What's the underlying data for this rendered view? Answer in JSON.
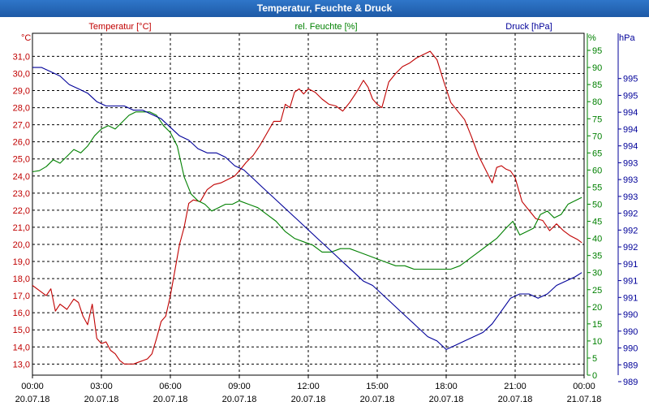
{
  "window": {
    "title": "Temperatur, Feuchte & Druck"
  },
  "colors": {
    "temperature": "#c00000",
    "humidity": "#008000",
    "pressure": "#000099",
    "grid": "#000000"
  },
  "chart_data": {
    "type": "line",
    "title": "Temperatur, Feuchte & Druck",
    "x_ticks": [
      {
        "time": "00:00",
        "date": "20.07.18"
      },
      {
        "time": "03:00",
        "date": "20.07.18"
      },
      {
        "time": "06:00",
        "date": "20.07.18"
      },
      {
        "time": "09:00",
        "date": "20.07.18"
      },
      {
        "time": "12:00",
        "date": "20.07.18"
      },
      {
        "time": "15:00",
        "date": "20.07.18"
      },
      {
        "time": "18:00",
        "date": "20.07.18"
      },
      {
        "time": "21:00",
        "date": "20.07.18"
      },
      {
        "time": "00:00",
        "date": "21.07.18"
      }
    ],
    "xlim_hours": [
      0,
      24
    ],
    "axes": {
      "temperature": {
        "label": "Temperatur [°C]",
        "unit": "°C",
        "ylim": [
          12.35,
          32.35
        ],
        "ticks": [
          "13,0",
          "14,0",
          "15,0",
          "16,0",
          "17,0",
          "18,0",
          "19,0",
          "20,0",
          "21,0",
          "22,0",
          "23,0",
          "24,0",
          "25,0",
          "26,0",
          "27,0",
          "28,0",
          "29,0",
          "30,0",
          "31,0"
        ]
      },
      "humidity": {
        "label": "rel. Feuchte [%]",
        "unit": "%",
        "ylim": [
          0,
          100
        ],
        "ticks": [
          "0",
          "5",
          "10",
          "15",
          "20",
          "25",
          "30",
          "35",
          "40",
          "45",
          "50",
          "55",
          "60",
          "65",
          "70",
          "75",
          "80",
          "85",
          "90",
          "95"
        ]
      },
      "pressure": {
        "label": "Druck [hPa]",
        "unit": "hPa",
        "ylim": [
          988.4,
          996.4
        ],
        "ticks": [
          "989",
          "989",
          "990",
          "990",
          "990",
          "991",
          "991",
          "991",
          "992",
          "992",
          "992",
          "993",
          "993",
          "993",
          "994",
          "994",
          "994",
          "995",
          "995"
        ]
      }
    },
    "series": [
      {
        "name": "Temperatur",
        "axis": "temperature",
        "x": [
          0,
          0.3,
          0.6,
          0.8,
          1.0,
          1.2,
          1.5,
          1.8,
          2.0,
          2.2,
          2.4,
          2.6,
          2.8,
          3.0,
          3.2,
          3.4,
          3.6,
          3.8,
          4.0,
          4.2,
          4.4,
          4.6,
          4.8,
          5.0,
          5.2,
          5.4,
          5.6,
          5.8,
          6.0,
          6.2,
          6.4,
          6.6,
          6.8,
          7.0,
          7.3,
          7.6,
          7.9,
          8.2,
          8.5,
          8.8,
          9.0,
          9.3,
          9.6,
          9.9,
          10.2,
          10.5,
          10.8,
          11.0,
          11.2,
          11.4,
          11.6,
          11.8,
          12.0,
          12.3,
          12.6,
          12.9,
          13.2,
          13.5,
          13.8,
          14.1,
          14.4,
          14.6,
          14.8,
          15.0,
          15.2,
          15.5,
          15.8,
          16.1,
          16.4,
          16.7,
          17.0,
          17.3,
          17.6,
          17.9,
          18.2,
          18.5,
          18.8,
          19.1,
          19.4,
          19.7,
          20.0,
          20.2,
          20.4,
          20.6,
          20.8,
          21.0,
          21.3,
          21.6,
          21.9,
          22.2,
          22.5,
          22.8,
          23.1,
          23.4,
          23.7,
          23.9
        ],
        "values": [
          17.6,
          17.3,
          17.0,
          17.4,
          16.1,
          16.5,
          16.2,
          16.8,
          16.6,
          15.8,
          15.3,
          16.5,
          14.5,
          14.2,
          14.3,
          13.8,
          13.6,
          13.2,
          13.0,
          13.0,
          13.0,
          13.1,
          13.2,
          13.3,
          13.6,
          14.5,
          15.5,
          15.8,
          17.0,
          18.5,
          20.0,
          21.0,
          22.4,
          22.6,
          22.5,
          23.2,
          23.5,
          23.6,
          23.8,
          24.0,
          24.3,
          24.8,
          25.2,
          25.8,
          26.5,
          27.2,
          27.2,
          28.2,
          28.0,
          28.9,
          29.1,
          28.8,
          29.1,
          28.9,
          28.5,
          28.2,
          28.1,
          27.8,
          28.3,
          28.9,
          29.6,
          29.2,
          28.5,
          28.2,
          28.0,
          29.5,
          30.0,
          30.4,
          30.6,
          30.9,
          31.1,
          31.3,
          30.8,
          29.5,
          28.3,
          27.8,
          27.3,
          26.3,
          25.2,
          24.4,
          23.6,
          24.5,
          24.6,
          24.4,
          24.3,
          23.9,
          22.5,
          22.0,
          21.5,
          21.4,
          20.8,
          21.2,
          20.8,
          20.5,
          20.3,
          20.1
        ]
      },
      {
        "name": "rel. Feuchte",
        "axis": "humidity",
        "x": [
          0,
          0.3,
          0.6,
          0.9,
          1.2,
          1.5,
          1.8,
          2.1,
          2.4,
          2.7,
          3.0,
          3.3,
          3.6,
          3.9,
          4.2,
          4.5,
          4.8,
          5.1,
          5.4,
          5.7,
          6.0,
          6.3,
          6.6,
          6.9,
          7.2,
          7.5,
          7.8,
          8.1,
          8.4,
          8.7,
          9.0,
          9.4,
          9.8,
          10.2,
          10.6,
          11.0,
          11.4,
          11.8,
          12.2,
          12.6,
          13.0,
          13.4,
          13.8,
          14.2,
          14.6,
          15.0,
          15.4,
          15.8,
          16.2,
          16.6,
          17.0,
          17.4,
          17.8,
          18.2,
          18.6,
          19.0,
          19.4,
          19.8,
          20.2,
          20.6,
          20.9,
          21.2,
          21.5,
          21.8,
          22.1,
          22.4,
          22.7,
          23.0,
          23.3,
          23.6,
          23.9
        ],
        "values": [
          59.5,
          59.8,
          61,
          63,
          62,
          64,
          66,
          65,
          67,
          70,
          72,
          73,
          72,
          74,
          76,
          77,
          77,
          77,
          76,
          73,
          71,
          67,
          58,
          53,
          51,
          50,
          48,
          49,
          50,
          50,
          51,
          50,
          49,
          47,
          45,
          42,
          40,
          39,
          38,
          36,
          36,
          37,
          37,
          36,
          35,
          34,
          33,
          32,
          32,
          31,
          31,
          31,
          31,
          31,
          32,
          34,
          36,
          38,
          40,
          43,
          45,
          41,
          42,
          43,
          47,
          48,
          46,
          47,
          50,
          51,
          52
        ]
      },
      {
        "name": "Druck",
        "axis": "pressure",
        "x": [
          0,
          0.4,
          0.8,
          1.2,
          1.6,
          2.0,
          2.4,
          2.8,
          3.2,
          3.6,
          4.0,
          4.4,
          4.8,
          5.2,
          5.6,
          6.0,
          6.4,
          6.8,
          7.2,
          7.6,
          8.0,
          8.4,
          8.8,
          9.2,
          9.6,
          10.0,
          10.4,
          10.8,
          11.2,
          11.6,
          12.0,
          12.4,
          12.8,
          13.2,
          13.6,
          14.0,
          14.4,
          14.8,
          15.2,
          15.6,
          16.0,
          16.4,
          16.8,
          17.2,
          17.6,
          18.0,
          18.4,
          18.8,
          19.2,
          19.6,
          20.0,
          20.4,
          20.8,
          21.2,
          21.6,
          22.0,
          22.4,
          22.8,
          23.2,
          23.6,
          23.9
        ],
        "values": [
          995.6,
          995.6,
          995.5,
          995.4,
          995.2,
          995.1,
          995.0,
          994.8,
          994.7,
          994.7,
          994.7,
          994.6,
          994.6,
          994.5,
          994.4,
          994.2,
          994.0,
          993.9,
          993.7,
          993.6,
          993.6,
          993.5,
          993.3,
          993.2,
          993.0,
          992.8,
          992.6,
          992.4,
          992.2,
          992.0,
          991.8,
          991.6,
          991.4,
          991.2,
          991.0,
          990.8,
          990.6,
          990.5,
          990.3,
          990.1,
          989.9,
          989.7,
          989.5,
          989.3,
          989.2,
          989.0,
          989.1,
          989.2,
          989.3,
          989.4,
          989.6,
          989.9,
          990.2,
          990.3,
          990.3,
          990.2,
          990.3,
          990.5,
          990.6,
          990.7,
          990.8
        ]
      }
    ]
  }
}
